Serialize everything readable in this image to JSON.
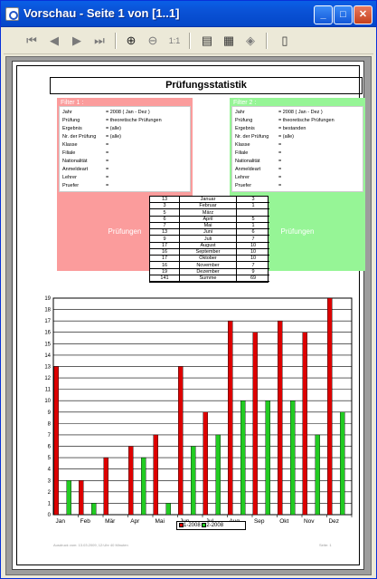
{
  "window": {
    "title": "Vorschau - Seite 1 von [1..1]",
    "minimize_icon": "minimize-icon",
    "maximize_icon": "maximize-icon",
    "close_icon": "close-icon"
  },
  "toolbar": {
    "icons": [
      "first-page-icon",
      "prev-page-icon",
      "next-page-icon",
      "last-page-icon",
      "zoom-in-icon",
      "zoom-out-icon",
      "zoom-actual-icon",
      "print-icon",
      "print-setup-icon",
      "export-icon",
      "exit-icon"
    ]
  },
  "report": {
    "title": "Prüfungsstatistik",
    "filter1": {
      "title": "Filter 1 :",
      "rows": [
        {
          "key": "Jahr",
          "value": "2008 ( Jan - Dez )"
        },
        {
          "key": "Prüfung",
          "value": "theoretische Prüfungen"
        },
        {
          "key": "Ergebnis",
          "value": "(alle)"
        },
        {
          "key": "Nr. der Prüfung",
          "value": "(alle)"
        },
        {
          "key": "Klasse",
          "value": ""
        },
        {
          "key": "Filiale",
          "value": ""
        },
        {
          "key": "Nationalität",
          "value": ""
        },
        {
          "key": "Anmeldeart",
          "value": ""
        },
        {
          "key": "Lehrer",
          "value": ""
        },
        {
          "key": "Pruefer",
          "value": ""
        }
      ],
      "label": "Prüfungen"
    },
    "filter2": {
      "title": "Filter 2 :",
      "rows": [
        {
          "key": "Jahr",
          "value": "2008 ( Jan - Dez )"
        },
        {
          "key": "Prüfung",
          "value": "theoretische Prüfungen"
        },
        {
          "key": "Ergebnis",
          "value": "bestanden"
        },
        {
          "key": "Nr. der Prüfung",
          "value": "(alle)"
        },
        {
          "key": "Klasse",
          "value": ""
        },
        {
          "key": "Filiale",
          "value": ""
        },
        {
          "key": "Nationalität",
          "value": ""
        },
        {
          "key": "Anmeldeart",
          "value": ""
        },
        {
          "key": "Lehrer",
          "value": ""
        },
        {
          "key": "Pruefer",
          "value": ""
        }
      ],
      "label": "Prüfungen"
    },
    "stats_table": [
      {
        "a": "13",
        "month": "Januar",
        "b": "3"
      },
      {
        "a": "3",
        "month": "Februar",
        "b": "1"
      },
      {
        "a": "5",
        "month": "März",
        "b": ""
      },
      {
        "a": "6",
        "month": "April",
        "b": "5"
      },
      {
        "a": "7",
        "month": "Mai",
        "b": "1"
      },
      {
        "a": "13",
        "month": "Juni",
        "b": "6"
      },
      {
        "a": "9",
        "month": "Juli",
        "b": "7"
      },
      {
        "a": "17",
        "month": "August",
        "b": "10"
      },
      {
        "a": "16",
        "month": "September",
        "b": "10"
      },
      {
        "a": "17",
        "month": "Oktober",
        "b": "10"
      },
      {
        "a": "16",
        "month": "November",
        "b": "7"
      },
      {
        "a": "19",
        "month": "Dezember",
        "b": "9"
      },
      {
        "a": "141",
        "month": "Summe",
        "b": "69"
      }
    ],
    "footer_left": "Ausdruck vom: 13.03.2009, 12:Uhr 40 Minuten",
    "footer_right": "Seite: 1"
  },
  "chart_data": {
    "type": "bar",
    "categories": [
      "Jan",
      "Feb",
      "Mär",
      "Apr",
      "Mai",
      "Jun",
      "Jul",
      "Aug",
      "Sep",
      "Okt",
      "Nov",
      "Dez"
    ],
    "series": [
      {
        "name": "1-2008",
        "color": "#dd0000",
        "values": [
          13,
          3,
          5,
          6,
          7,
          13,
          9,
          17,
          16,
          17,
          16,
          19
        ]
      },
      {
        "name": "2-2008",
        "color": "#22cc22",
        "values": [
          3,
          1,
          0,
          5,
          1,
          6,
          7,
          10,
          10,
          10,
          7,
          9
        ]
      }
    ],
    "ylim": [
      0,
      19
    ],
    "yticks": [
      0,
      1,
      2,
      3,
      4,
      5,
      6,
      7,
      8,
      9,
      10,
      11,
      12,
      13,
      14,
      15,
      16,
      17,
      18,
      19
    ],
    "grid": true,
    "legend": "bottom"
  }
}
